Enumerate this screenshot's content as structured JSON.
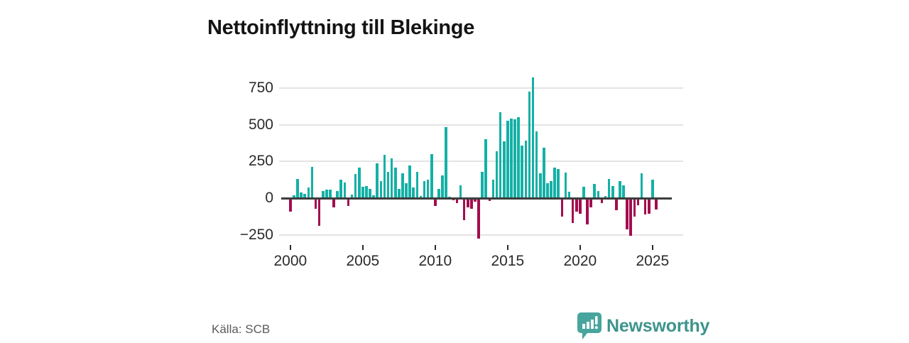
{
  "title": "Nettoinflyttning till Blekinge",
  "source": "Källa: SCB",
  "brand": {
    "name": "Newsworthy",
    "icon": "bar-chart-speech-bubble-icon",
    "text_color": "#3d948c",
    "bubble_color": "#47a59d"
  },
  "colors": {
    "positive": "#14b0a6",
    "negative": "#a30d4f",
    "gridline": "#e4e4e4",
    "zero_line": "#3d3d3d",
    "axis_text": "#2b2b2b"
  },
  "chart_data": {
    "type": "bar",
    "title": "Nettoinflyttning till Blekinge",
    "ylabel": "",
    "xlabel": "",
    "frequency": "quarterly",
    "start_period": "2000 Q1",
    "end_period": "2025 Q2",
    "values": [
      -90,
      21,
      130,
      37,
      29,
      74,
      215,
      -71,
      -188,
      48,
      56,
      56,
      -63,
      48,
      128,
      104,
      -54,
      25,
      163,
      210,
      77,
      82,
      64,
      21,
      236,
      114,
      293,
      181,
      272,
      210,
      64,
      168,
      101,
      224,
      72,
      180,
      16,
      114,
      125,
      301,
      -51,
      64,
      157,
      482,
      10,
      -15,
      -36,
      85,
      -152,
      -63,
      -73,
      -25,
      -277,
      181,
      400,
      -20,
      128,
      321,
      584,
      385,
      529,
      543,
      535,
      553,
      356,
      393,
      724,
      821,
      455,
      170,
      341,
      101,
      114,
      210,
      198,
      -124,
      173,
      43,
      -171,
      -92,
      -105,
      75,
      -179,
      -63,
      98,
      46,
      -32,
      15,
      130,
      80,
      -83,
      114,
      85,
      -211,
      -256,
      -125,
      -49,
      170,
      -113,
      -106,
      128,
      -76
    ],
    "yticks": [
      750,
      500,
      250,
      0,
      -250
    ],
    "ytick_labels": [
      "750",
      "500",
      "250",
      "0",
      "−250"
    ],
    "xtick_years": [
      2000,
      2005,
      2010,
      2015,
      2020,
      2025
    ],
    "xtick_labels": [
      "2000",
      "2005",
      "2010",
      "2015",
      "2020",
      "2025"
    ],
    "ylim": [
      -320,
      870
    ],
    "grid": "horizontal",
    "legend": "none",
    "positive_color": "#14b0a6",
    "negative_color": "#a30d4f"
  }
}
